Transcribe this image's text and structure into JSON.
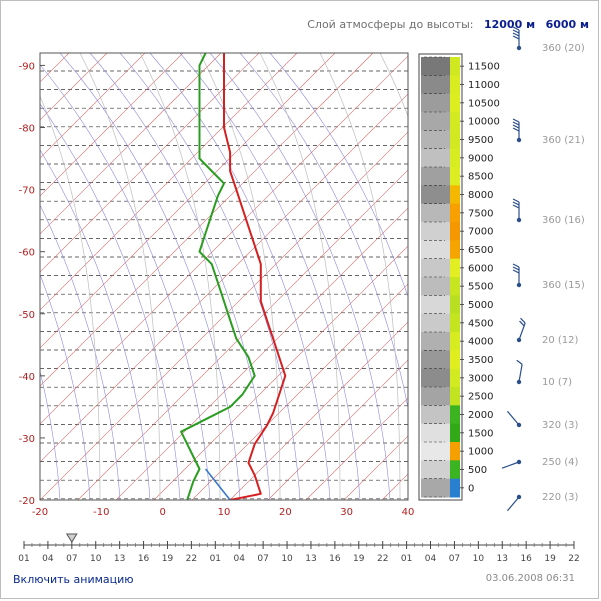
{
  "header": {
    "label": "Слой атмосферы до высоты:",
    "options": [
      "12000 м",
      "6000 м"
    ]
  },
  "chart_data": {
    "type": "line",
    "x_axis": {
      "min": -20,
      "max": 40,
      "ticks": [
        -20,
        -10,
        0,
        10,
        20,
        30,
        40
      ]
    },
    "y_axis": {
      "min": -20,
      "max": -92,
      "ticks": [
        -20,
        -30,
        -40,
        -50,
        -60,
        -70,
        -80,
        -90
      ]
    },
    "series": [
      {
        "color": "#d42020",
        "points": [
          [
            11,
            -20
          ],
          [
            16,
            -21
          ],
          [
            15,
            -24
          ],
          [
            14,
            -26
          ],
          [
            15,
            -29
          ],
          [
            17,
            -32
          ],
          [
            18,
            -34
          ],
          [
            19,
            -37
          ],
          [
            20,
            -40
          ],
          [
            19,
            -43
          ],
          [
            18,
            -46
          ],
          [
            17,
            -49
          ],
          [
            16,
            -52
          ],
          [
            16,
            -55
          ],
          [
            16,
            -58
          ],
          [
            15,
            -61
          ],
          [
            14,
            -64
          ],
          [
            13,
            -67
          ],
          [
            12,
            -70
          ],
          [
            11,
            -73
          ],
          [
            11,
            -76
          ],
          [
            10,
            -80
          ],
          [
            10,
            -84
          ],
          [
            10,
            -88
          ],
          [
            10,
            -92
          ]
        ]
      },
      {
        "color": "#2a9d20",
        "points": [
          [
            4,
            -20
          ],
          [
            5,
            -23
          ],
          [
            6,
            -25
          ],
          [
            5,
            -27
          ],
          [
            4,
            -29
          ],
          [
            3,
            -31
          ],
          [
            7,
            -33
          ],
          [
            11,
            -35
          ],
          [
            13,
            -37
          ],
          [
            15,
            -40
          ],
          [
            14,
            -43
          ],
          [
            12,
            -46
          ],
          [
            11,
            -49
          ],
          [
            10,
            -52
          ],
          [
            9,
            -55
          ],
          [
            8,
            -58
          ],
          [
            6,
            -60
          ],
          [
            7,
            -63
          ],
          [
            8,
            -66
          ],
          [
            9,
            -69
          ],
          [
            10,
            -71
          ],
          [
            8,
            -73
          ],
          [
            6,
            -75
          ],
          [
            6,
            -78
          ],
          [
            6,
            -82
          ],
          [
            6,
            -86
          ],
          [
            6,
            -90
          ],
          [
            7,
            -92
          ]
        ]
      },
      {
        "color": "#3a78c8",
        "points": [
          [
            11,
            -20
          ],
          [
            7,
            -25
          ]
        ]
      }
    ]
  },
  "colorbar": {
    "labels": [
      "11500",
      "11000",
      "10500",
      "10000",
      "9500",
      "9000",
      "8500",
      "8000",
      "7500",
      "7000",
      "6500",
      "6000",
      "5500",
      "5000",
      "4500",
      "4000",
      "3500",
      "3000",
      "2500",
      "2000",
      "1500",
      "1000",
      "500",
      "0"
    ],
    "gray_segments": [
      "#787878",
      "#8a8a8a",
      "#9c9c9c",
      "#a8a8a8",
      "#b4b4b4",
      "#c0c0c0",
      "#a0a0a0",
      "#8e8e8e",
      "#b8b8b8",
      "#d0d0d0",
      "#dcdcdc",
      "#c8c8c8",
      "#bcbcbc",
      "#d8d8d8",
      "#cacaca",
      "#b0b0b0",
      "#989898",
      "#8c8c8c",
      "#a4a4a4",
      "#c4c4c4",
      "#e0e0e0",
      "#e8e8e8",
      "#d0d0d0",
      "#a8a8a8"
    ],
    "color_segments": [
      "#d0e820",
      "#d8ec20",
      "#dcee20",
      "#d4ea20",
      "#d2e820",
      "#d8ec22",
      "#dcee22",
      "#f5b800",
      "#f8a000",
      "#f59800",
      "#f6a400",
      "#e2ee22",
      "#c8e620",
      "#b8e020",
      "#c4e420",
      "#d6ec20",
      "#e0ee20",
      "#d2ea20",
      "#c2e420",
      "#3cb420",
      "#32aa18",
      "#f6a000",
      "#3ab420",
      "#2a80d0"
    ]
  },
  "wind": {
    "labels": [
      "360 (20)",
      "360 (21)",
      "360 (16)",
      "360 (15)",
      "20 (12)",
      "10 (7)",
      "320 (3)",
      "250 (4)",
      "220 (3)"
    ]
  },
  "timeline": {
    "labels": [
      "01",
      "04",
      "07",
      "10",
      "13",
      "16",
      "19",
      "22",
      "01",
      "04",
      "07",
      "10",
      "13",
      "16",
      "19",
      "22",
      "01",
      "04",
      "07",
      "10",
      "13",
      "16",
      "19",
      "22"
    ]
  },
  "footer": {
    "animation_link": "Включить анимацию",
    "timestamp": "03.06.2008 06:31"
  }
}
